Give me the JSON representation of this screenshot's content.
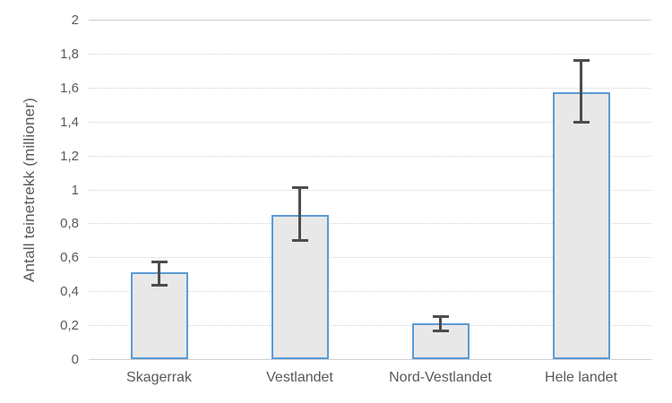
{
  "chart_data": {
    "type": "bar",
    "title": "",
    "xlabel": "",
    "ylabel": "Antall teinetrekk (millioner)",
    "categories": [
      "Skagerrak",
      "Vestlandet",
      "Nord-Vestlandet",
      "Hele landet"
    ],
    "values": [
      0.51,
      0.85,
      0.21,
      1.57
    ],
    "error_low": [
      0.43,
      0.69,
      0.16,
      1.39
    ],
    "error_high": [
      0.58,
      1.02,
      0.26,
      1.77
    ],
    "ylim": [
      0,
      2
    ],
    "ytick_step": 0.2,
    "ytick_labels": [
      "0",
      "0,2",
      "0,4",
      "0,6",
      "0,8",
      "1",
      "1,2",
      "1,4",
      "1,6",
      "1,8",
      "2"
    ],
    "grid": true,
    "legend": "none",
    "colors": {
      "bar_fill": "#E9E8E8",
      "bar_border": "#5B9BD5",
      "error_bar": "#4D4D4D",
      "gridline": "#D2D2D2",
      "text": "#595959",
      "background": "#FFFFFF"
    }
  }
}
